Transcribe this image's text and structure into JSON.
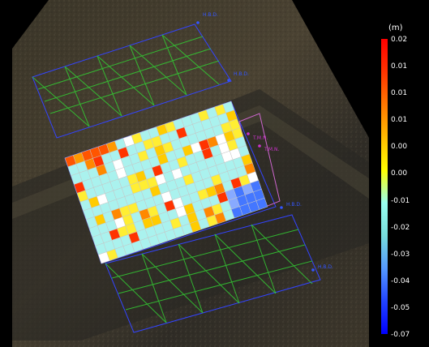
{
  "viewer": {
    "markers": [
      {
        "label": "H.B.D."
      },
      {
        "label": "H.B.D."
      },
      {
        "label": "T.M.N."
      },
      {
        "label": "T.M.N."
      },
      {
        "label": "H.B.D."
      },
      {
        "label": "H.B.D."
      }
    ]
  },
  "legend": {
    "unit": "(m)",
    "ticks": [
      "0.02",
      "0.01",
      "0.01",
      "0.01",
      "0.00",
      "0.00",
      "-0.01",
      "-0.02",
      "-0.03",
      "-0.04",
      "-0.05",
      "-0.07"
    ],
    "colors": [
      "#ff0000",
      "#ff3300",
      "#ff7700",
      "#ffbb00",
      "#ffff00",
      "#99ffee",
      "#77dddd",
      "#5599ff",
      "#2244ff",
      "#0000ff"
    ]
  },
  "grid_colors": {
    "frame": "#3344ff",
    "mesh": "#33cc33",
    "label": "#3355ff",
    "label_alt": "#cc33cc"
  }
}
